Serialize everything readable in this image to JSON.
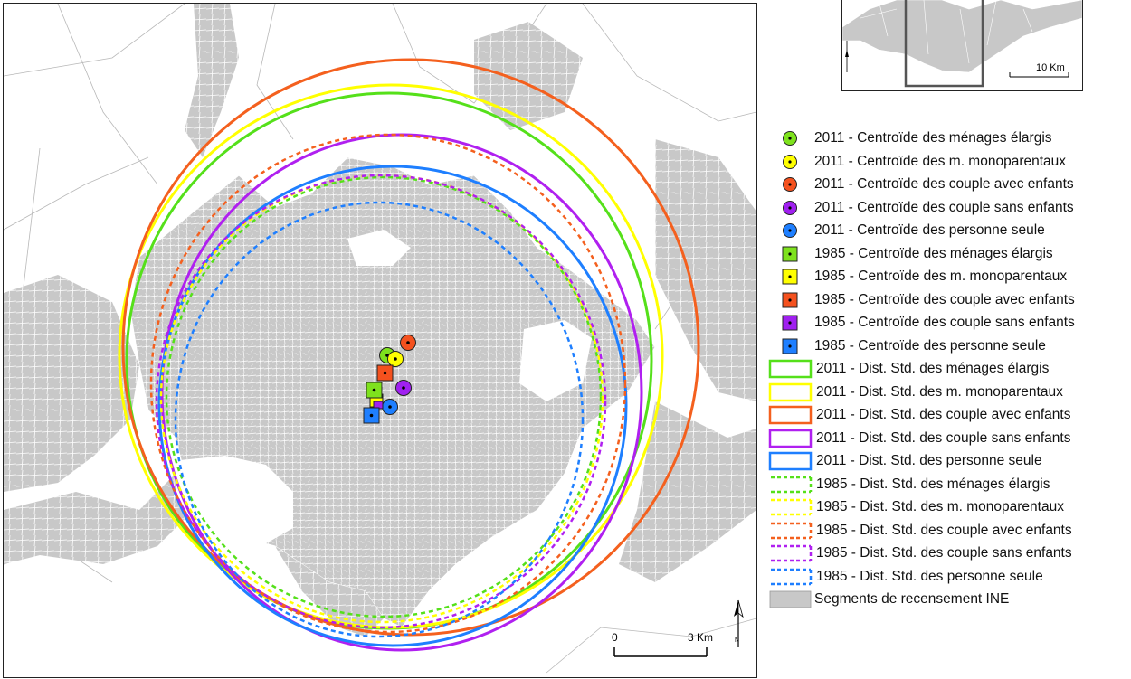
{
  "map": {
    "scale_bar": {
      "zero_label": "0",
      "end_label": "3 Km"
    },
    "north_arrow": "north-arrow",
    "base_layer_fill": "#c8c8c8",
    "base_layer_stroke": "#ffffff"
  },
  "inset": {
    "scale_bar_label": "10 Km",
    "extent_box_color": "#555555"
  },
  "legend": {
    "centroids_2011": [
      {
        "label": "2011 - Centroïde des ménages élargis",
        "color": "#7ee21d"
      },
      {
        "label": "2011 - Centroïde des m. monoparentaux",
        "color": "#ffff00"
      },
      {
        "label": "2011 - Centroïde des couple avec enfants",
        "color": "#f4511e"
      },
      {
        "label": "2011 - Centroïde des couple sans enfants",
        "color": "#a020f0"
      },
      {
        "label": "2011 - Centroïde des personne seule",
        "color": "#1e7fff"
      }
    ],
    "centroids_1985": [
      {
        "label": "1985 - Centroïde des ménages élargis",
        "color": "#7ee21d"
      },
      {
        "label": "1985 - Centroïde des m. monoparentaux",
        "color": "#ffff00"
      },
      {
        "label": "1985 - Centroïde des couple avec enfants",
        "color": "#f4511e"
      },
      {
        "label": "1985 - Centroïde des couple sans enfants",
        "color": "#a020f0"
      },
      {
        "label": "1985 - Centroïde des personne seule",
        "color": "#1e7fff"
      }
    ],
    "dist_2011": [
      {
        "label": "2011 - Dist. Std. des ménages élargis",
        "color": "#55e01a"
      },
      {
        "label": "2011 - Dist. Std. des m. monoparentaux",
        "color": "#ffff00"
      },
      {
        "label": "2011 - Dist. Std. des couple avec enfants",
        "color": "#f4601e"
      },
      {
        "label": "2011 - Dist. Std. des couple sans enfants",
        "color": "#b020f0"
      },
      {
        "label": "2011 - Dist. Std. des personne seule",
        "color": "#1e7fff"
      }
    ],
    "dist_1985": [
      {
        "label": "1985 - Dist. Std. des ménages élargis",
        "color": "#55e01a"
      },
      {
        "label": "1985 - Dist. Std. des m. monoparentaux",
        "color": "#ffff00"
      },
      {
        "label": "1985 - Dist. Std. des couple avec enfants",
        "color": "#f4601e"
      },
      {
        "label": "1985 - Dist. Std. des couple sans enfants",
        "color": "#b020f0"
      },
      {
        "label": "1985 - Dist. Std. des personne seule",
        "color": "#1e7fff"
      }
    ],
    "segments": {
      "label": "Segments de recensement INE",
      "color": "#c8c8c8"
    }
  }
}
